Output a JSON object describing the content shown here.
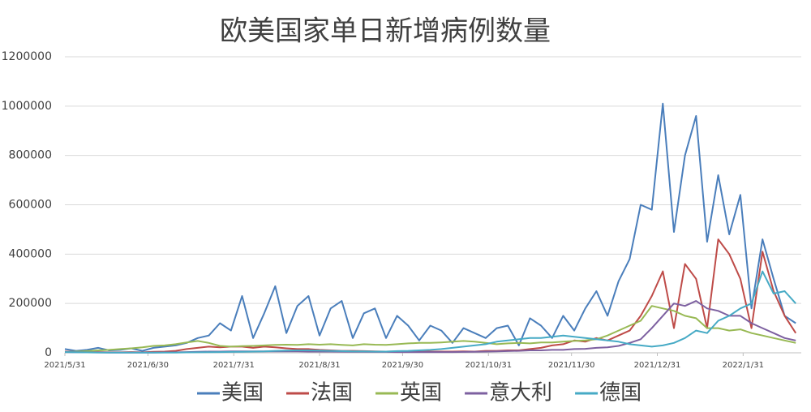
{
  "chart_data": {
    "type": "line",
    "title": "欧美国家单日新增病例数量",
    "x": [
      "2021-05-31",
      "2021-06-04",
      "2021-06-08",
      "2021-06-12",
      "2021-06-16",
      "2021-06-20",
      "2021-06-24",
      "2021-06-28",
      "2021-07-02",
      "2021-07-06",
      "2021-07-10",
      "2021-07-14",
      "2021-07-18",
      "2021-07-22",
      "2021-07-26",
      "2021-07-30",
      "2021-08-03",
      "2021-08-07",
      "2021-08-11",
      "2021-08-15",
      "2021-08-19",
      "2021-08-23",
      "2021-08-27",
      "2021-08-31",
      "2021-09-04",
      "2021-09-08",
      "2021-09-12",
      "2021-09-16",
      "2021-09-20",
      "2021-09-24",
      "2021-09-28",
      "2021-10-02",
      "2021-10-06",
      "2021-10-10",
      "2021-10-14",
      "2021-10-18",
      "2021-10-22",
      "2021-10-26",
      "2021-10-30",
      "2021-11-03",
      "2021-11-07",
      "2021-11-11",
      "2021-11-15",
      "2021-11-19",
      "2021-11-23",
      "2021-11-27",
      "2021-12-01",
      "2021-12-05",
      "2021-12-09",
      "2021-12-13",
      "2021-12-17",
      "2021-12-21",
      "2021-12-25",
      "2021-12-29",
      "2022-01-02",
      "2022-01-06",
      "2022-01-10",
      "2022-01-14",
      "2022-01-18",
      "2022-01-22",
      "2022-01-26",
      "2022-01-30",
      "2022-02-03",
      "2022-02-07",
      "2022-02-11",
      "2022-02-15",
      "2022-02-19"
    ],
    "xlim": [
      "2021-05-31",
      "2022-02-21"
    ],
    "xticks": [
      {
        "value": "2021-05-31",
        "label": "2021/5/31"
      },
      {
        "value": "2021-06-30",
        "label": "2021/6/30"
      },
      {
        "value": "2021-07-31",
        "label": "2021/7/31"
      },
      {
        "value": "2021-08-31",
        "label": "2021/8/31"
      },
      {
        "value": "2021-09-30",
        "label": "2021/9/30"
      },
      {
        "value": "2021-10-31",
        "label": "2021/10/31"
      },
      {
        "value": "2021-11-30",
        "label": "2021/11/30"
      },
      {
        "value": "2021-12-31",
        "label": "2021/12/31"
      },
      {
        "value": "2022-01-31",
        "label": "2022/1/31"
      }
    ],
    "ylim": [
      0,
      1200000
    ],
    "yticks": [
      0,
      200000,
      400000,
      600000,
      800000,
      1000000,
      1200000
    ],
    "grid": true,
    "series": [
      {
        "name": "美国",
        "color": "#4a7ebb",
        "values": [
          15000,
          8000,
          12000,
          20000,
          10000,
          12000,
          18000,
          8000,
          20000,
          25000,
          30000,
          40000,
          60000,
          70000,
          120000,
          90000,
          230000,
          60000,
          160000,
          270000,
          80000,
          190000,
          230000,
          70000,
          180000,
          210000,
          60000,
          160000,
          180000,
          60000,
          150000,
          110000,
          50000,
          110000,
          90000,
          40000,
          100000,
          80000,
          60000,
          100000,
          110000,
          30000,
          140000,
          110000,
          60000,
          150000,
          90000,
          180000,
          250000,
          150000,
          290000,
          380000,
          600000,
          580000,
          1010000,
          490000,
          800000,
          960000,
          450000,
          720000,
          480000,
          640000,
          180000,
          460000,
          300000,
          150000,
          120000
        ]
      },
      {
        "name": "法国",
        "color": "#be4b48",
        "values": [
          5000,
          4000,
          3000,
          3000,
          2000,
          2000,
          3000,
          2000,
          4000,
          5000,
          8000,
          15000,
          20000,
          25000,
          22000,
          25000,
          25000,
          20000,
          25000,
          22000,
          18000,
          15000,
          15000,
          12000,
          10000,
          8000,
          8000,
          7000,
          6000,
          5000,
          6000,
          5000,
          4000,
          5000,
          5000,
          5000,
          6000,
          5000,
          8000,
          8000,
          10000,
          10000,
          15000,
          20000,
          30000,
          35000,
          50000,
          45000,
          60000,
          50000,
          70000,
          90000,
          150000,
          230000,
          330000,
          100000,
          360000,
          300000,
          100000,
          460000,
          400000,
          300000,
          100000,
          410000,
          250000,
          150000,
          80000
        ]
      },
      {
        "name": "英国",
        "color": "#98b954",
        "values": [
          3000,
          5000,
          7000,
          10000,
          12000,
          15000,
          18000,
          22000,
          28000,
          30000,
          35000,
          42000,
          48000,
          40000,
          28000,
          25000,
          27000,
          28000,
          30000,
          32000,
          33000,
          32000,
          35000,
          33000,
          35000,
          32000,
          30000,
          35000,
          33000,
          32000,
          35000,
          38000,
          40000,
          40000,
          42000,
          45000,
          48000,
          45000,
          40000,
          35000,
          38000,
          40000,
          38000,
          42000,
          42000,
          45000,
          48000,
          50000,
          55000,
          70000,
          90000,
          110000,
          130000,
          190000,
          180000,
          170000,
          150000,
          140000,
          100000,
          100000,
          90000,
          95000,
          80000,
          70000,
          60000,
          50000,
          40000
        ]
      },
      {
        "name": "意大利",
        "color": "#7d60a0",
        "values": [
          3000,
          2500,
          2000,
          1500,
          1000,
          1000,
          1000,
          800,
          1000,
          1500,
          2000,
          3000,
          4000,
          5000,
          5000,
          6000,
          6000,
          6000,
          6000,
          6000,
          6000,
          5500,
          5000,
          5000,
          5000,
          4500,
          4000,
          4000,
          3500,
          3500,
          3000,
          3000,
          3000,
          3000,
          3000,
          3000,
          3500,
          4000,
          5000,
          6000,
          7000,
          8000,
          10000,
          10000,
          12000,
          12000,
          15000,
          16000,
          20000,
          22000,
          28000,
          40000,
          55000,
          100000,
          150000,
          200000,
          190000,
          210000,
          180000,
          170000,
          150000,
          150000,
          120000,
          100000,
          80000,
          60000,
          50000
        ]
      },
      {
        "name": "德国",
        "color": "#46aac5",
        "values": [
          3000,
          2000,
          1500,
          1000,
          800,
          700,
          600,
          600,
          700,
          800,
          1000,
          1500,
          2000,
          2500,
          3000,
          3500,
          4000,
          5000,
          6000,
          8000,
          9000,
          10000,
          10000,
          9000,
          8000,
          7000,
          6000,
          6000,
          5000,
          5000,
          7000,
          8000,
          10000,
          12000,
          15000,
          20000,
          25000,
          30000,
          35000,
          45000,
          50000,
          55000,
          60000,
          60000,
          65000,
          70000,
          65000,
          60000,
          55000,
          50000,
          45000,
          35000,
          30000,
          25000,
          30000,
          40000,
          60000,
          90000,
          80000,
          130000,
          150000,
          180000,
          200000,
          330000,
          240000,
          250000,
          200000
        ]
      }
    ],
    "legend": "bottom"
  }
}
